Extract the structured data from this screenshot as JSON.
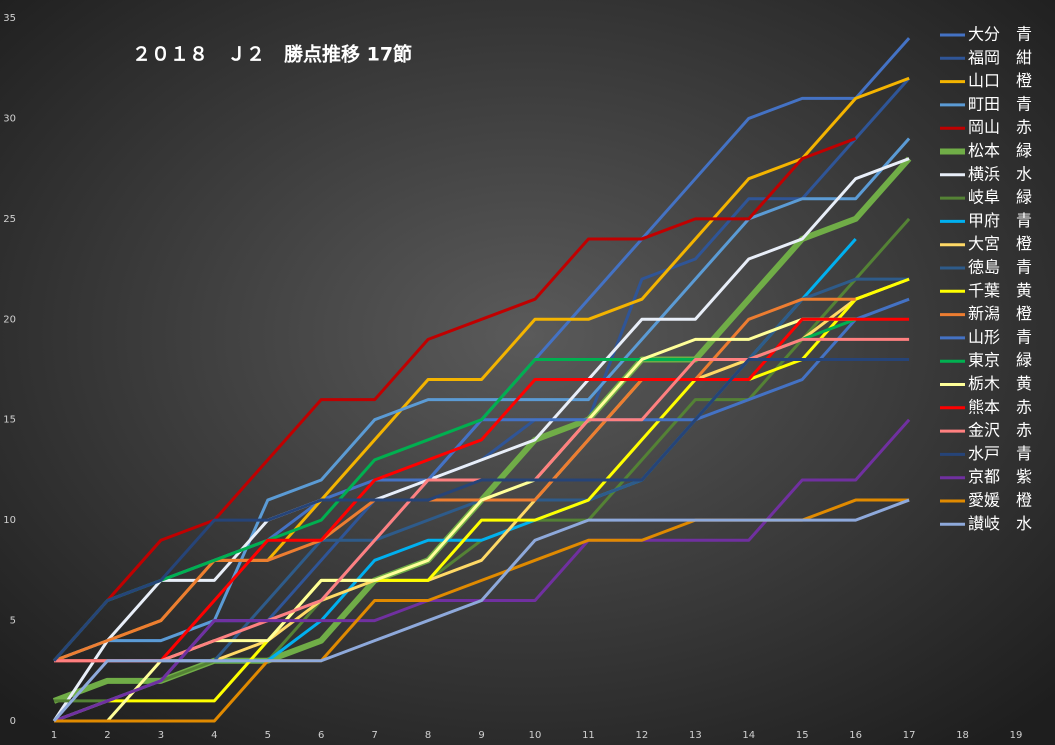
{
  "chart_data": {
    "type": "line",
    "title": "２０１８　Ｊ２　勝点推移 17節",
    "x": [
      1,
      2,
      3,
      4,
      5,
      6,
      7,
      8,
      9,
      10,
      11,
      12,
      13,
      14,
      15,
      16,
      17
    ],
    "xlim": [
      1,
      19
    ],
    "xticks": [
      1,
      2,
      3,
      4,
      5,
      6,
      7,
      8,
      9,
      10,
      11,
      12,
      13,
      14,
      15,
      16,
      17,
      18,
      19
    ],
    "ylim": [
      0,
      35
    ],
    "yticks": [
      0,
      5,
      10,
      15,
      20,
      25,
      30,
      35
    ],
    "legend": "right",
    "series": [
      {
        "name": "大分　青",
        "color": "#4472c4",
        "values": [
          3,
          6,
          7,
          8,
          9,
          11,
          12,
          12,
          15,
          18,
          21,
          24,
          27,
          30,
          31,
          31,
          34
        ]
      },
      {
        "name": "福岡　紺",
        "color": "#2f5597",
        "values": [
          3,
          4,
          4,
          5,
          5,
          8,
          11,
          12,
          13,
          15,
          15,
          22,
          23,
          26,
          26,
          29,
          32
        ]
      },
      {
        "name": "山口　橙",
        "color": "#f4b400",
        "values": [
          3,
          4,
          5,
          8,
          8,
          11,
          14,
          17,
          17,
          20,
          20,
          21,
          24,
          27,
          28,
          31,
          32
        ]
      },
      {
        "name": "町田　青",
        "color": "#5b9bd5",
        "values": [
          3,
          4,
          4,
          5,
          11,
          12,
          15,
          16,
          16,
          16,
          16,
          19,
          22,
          25,
          26,
          26,
          29
        ]
      },
      {
        "name": "岡山　赤",
        "color": "#c00000",
        "values": [
          3,
          6,
          9,
          10,
          13,
          16,
          16,
          19,
          20,
          21,
          24,
          24,
          25,
          25,
          28,
          29,
          null
        ]
      },
      {
        "name": "松本　緑",
        "color": "#70ad47",
        "values": [
          1,
          2,
          2,
          3,
          3,
          4,
          7,
          8,
          11,
          14,
          15,
          18,
          18,
          21,
          24,
          25,
          28
        ]
      },
      {
        "name": "横浜　水",
        "color": "#e8eef8",
        "values": [
          0,
          4,
          7,
          7,
          10,
          11,
          11,
          12,
          13,
          14,
          17,
          20,
          20,
          23,
          24,
          27,
          28
        ]
      },
      {
        "name": "岐阜　緑",
        "color": "#548235",
        "values": [
          1,
          1,
          2,
          3,
          3,
          6,
          7,
          7,
          9,
          10,
          10,
          13,
          16,
          16,
          19,
          22,
          25
        ]
      },
      {
        "name": "甲府　青",
        "color": "#00b0f0",
        "values": [
          3,
          3,
          3,
          3,
          3,
          5,
          8,
          9,
          9,
          10,
          11,
          12,
          15,
          18,
          21,
          24,
          null
        ]
      },
      {
        "name": "大宮　橙",
        "color": "#ffd966",
        "values": [
          3,
          3,
          3,
          3,
          4,
          6,
          7,
          7,
          8,
          11,
          14,
          17,
          17,
          18,
          19,
          21,
          22
        ]
      },
      {
        "name": "徳島　青",
        "color": "#2e5b8a",
        "values": [
          3,
          3,
          3,
          3,
          6,
          9,
          9,
          10,
          11,
          11,
          11,
          12,
          15,
          18,
          21,
          22,
          22
        ]
      },
      {
        "name": "千葉　黄",
        "color": "#ffff00",
        "values": [
          0,
          1,
          1,
          1,
          4,
          7,
          7,
          7,
          10,
          10,
          11,
          14,
          17,
          17,
          18,
          21,
          22
        ]
      },
      {
        "name": "新潟　橙",
        "color": "#ed7d31",
        "values": [
          3,
          4,
          5,
          8,
          8,
          9,
          11,
          11,
          11,
          11,
          14,
          17,
          17,
          20,
          21,
          21,
          null
        ]
      },
      {
        "name": "山形　青",
        "color": "#4472c4",
        "values": [
          0,
          1,
          2,
          5,
          5,
          6,
          9,
          12,
          15,
          15,
          15,
          15,
          15,
          16,
          17,
          20,
          21
        ]
      },
      {
        "name": "東京　緑",
        "color": "#00b050",
        "values": [
          3,
          6,
          7,
          8,
          9,
          10,
          13,
          14,
          15,
          18,
          18,
          18,
          18,
          18,
          19,
          20,
          null
        ]
      },
      {
        "name": "栃木　黄",
        "color": "#ffff99",
        "values": [
          0,
          0,
          3,
          4,
          4,
          7,
          7,
          8,
          11,
          12,
          15,
          18,
          19,
          19,
          20,
          20,
          null
        ]
      },
      {
        "name": "熊本　赤",
        "color": "#ff0000",
        "values": [
          3,
          3,
          3,
          6,
          9,
          9,
          12,
          13,
          14,
          17,
          17,
          17,
          17,
          17,
          20,
          20,
          20
        ]
      },
      {
        "name": "金沢　赤",
        "color": "#ff8080",
        "values": [
          3,
          3,
          3,
          4,
          5,
          6,
          9,
          12,
          12,
          12,
          15,
          15,
          18,
          18,
          19,
          19,
          19
        ]
      },
      {
        "name": "水戸　青",
        "color": "#264478",
        "values": [
          3,
          6,
          7,
          10,
          10,
          11,
          11,
          11,
          12,
          12,
          12,
          12,
          15,
          18,
          18,
          18,
          18
        ]
      },
      {
        "name": "京都　紫",
        "color": "#7030a0",
        "values": [
          0,
          1,
          2,
          5,
          5,
          5,
          5,
          6,
          6,
          6,
          9,
          9,
          9,
          9,
          12,
          12,
          15
        ]
      },
      {
        "name": "愛媛　橙",
        "color": "#e08a00",
        "values": [
          0,
          0,
          0,
          0,
          3,
          3,
          6,
          6,
          7,
          8,
          9,
          9,
          10,
          10,
          10,
          11,
          11
        ]
      },
      {
        "name": "讃岐　水",
        "color": "#8ea9db",
        "values": [
          0,
          3,
          3,
          3,
          3,
          3,
          4,
          5,
          6,
          9,
          10,
          10,
          10,
          10,
          10,
          10,
          11
        ]
      }
    ]
  }
}
